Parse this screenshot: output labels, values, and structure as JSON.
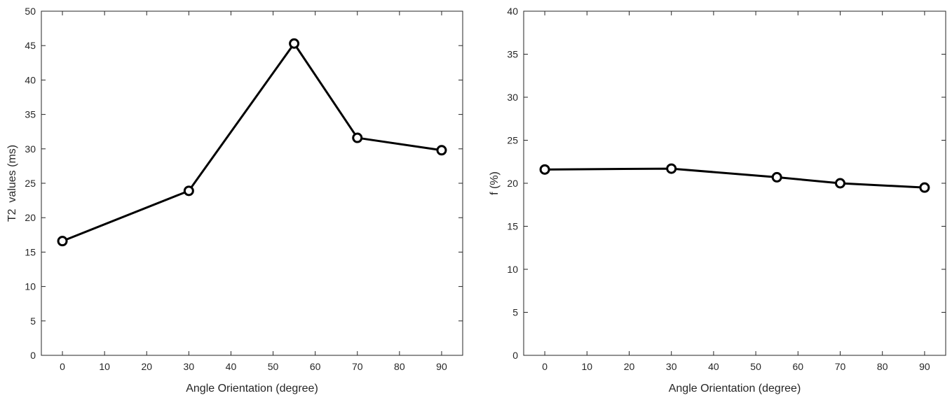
{
  "chart_data": [
    {
      "type": "line",
      "xlabel": "Angle Orientation (degree)",
      "ylabel": "T2  values (ms)",
      "xlim": [
        -5,
        95
      ],
      "ylim": [
        0,
        50
      ],
      "xticks": [
        0,
        10,
        20,
        30,
        40,
        50,
        60,
        70,
        80,
        90
      ],
      "yticks": [
        0,
        5,
        10,
        15,
        20,
        25,
        30,
        35,
        40,
        45,
        50
      ],
      "grid": false,
      "series": [
        {
          "x": [
            0,
            30,
            55,
            70,
            90
          ],
          "values": [
            16.6,
            23.9,
            45.3,
            31.6,
            29.8
          ],
          "marker": "circle",
          "color": "#000000"
        }
      ]
    },
    {
      "type": "line",
      "xlabel": "Angle Orientation (degree)",
      "ylabel": "f (%)",
      "xlim": [
        -5,
        95
      ],
      "ylim": [
        0,
        40
      ],
      "xticks": [
        0,
        10,
        20,
        30,
        40,
        50,
        60,
        70,
        80,
        90
      ],
      "yticks": [
        0,
        5,
        10,
        15,
        20,
        25,
        30,
        35,
        40
      ],
      "grid": false,
      "series": [
        {
          "x": [
            0,
            30,
            55,
            70,
            90
          ],
          "values": [
            21.6,
            21.7,
            20.7,
            20.0,
            19.5
          ],
          "marker": "circle",
          "color": "#000000"
        }
      ]
    }
  ]
}
